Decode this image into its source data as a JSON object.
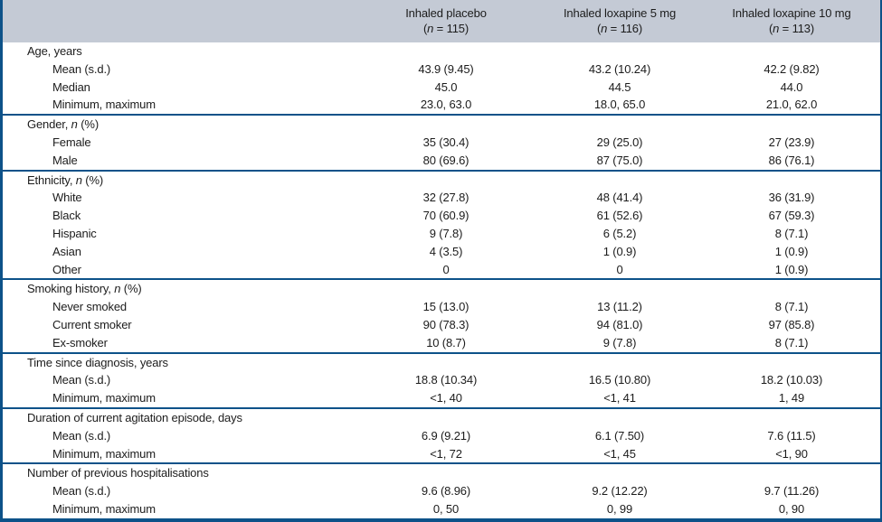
{
  "colors": {
    "header_bg": "#c4cad5",
    "border_blue": "#0d5289",
    "text": "#1c1c1c"
  },
  "header": {
    "columns": [
      {
        "line1": [
          {
            "t": "Inhaled placebo"
          }
        ],
        "line2": [
          {
            "t": "("
          },
          {
            "t": "n",
            "i": true
          },
          {
            "t": " = 115)"
          }
        ]
      },
      {
        "line1": [
          {
            "t": "Inhaled loxapine 5 mg"
          }
        ],
        "line2": [
          {
            "t": "("
          },
          {
            "t": "n",
            "i": true
          },
          {
            "t": " = 116)"
          }
        ]
      },
      {
        "line1": [
          {
            "t": "Inhaled loxapine 10 mg"
          }
        ],
        "line2": [
          {
            "t": "("
          },
          {
            "t": "n",
            "i": true
          },
          {
            "t": " = 113)"
          }
        ]
      }
    ]
  },
  "table": {
    "sections": [
      {
        "label_segments": [
          {
            "t": "Age, years"
          }
        ],
        "rows": [
          {
            "label_segments": [
              {
                "t": "Mean (s.d.)"
              }
            ],
            "values": [
              "43.9 (9.45)",
              "43.2 (10.24)",
              "42.2 (9.82)"
            ]
          },
          {
            "label_segments": [
              {
                "t": "Median"
              }
            ],
            "values": [
              "45.0",
              "44.5",
              "44.0"
            ]
          },
          {
            "label_segments": [
              {
                "t": "Minimum, maximum"
              }
            ],
            "values": [
              "23.0, 63.0",
              "18.0, 65.0",
              "21.0, 62.0"
            ]
          }
        ]
      },
      {
        "label_segments": [
          {
            "t": "Gender, "
          },
          {
            "t": "n",
            "i": true
          },
          {
            "t": " (%)"
          }
        ],
        "rows": [
          {
            "label_segments": [
              {
                "t": "Female"
              }
            ],
            "values": [
              "35 (30.4)",
              "29 (25.0)",
              "27 (23.9)"
            ]
          },
          {
            "label_segments": [
              {
                "t": "Male"
              }
            ],
            "values": [
              "80 (69.6)",
              "87 (75.0)",
              "86 (76.1)"
            ]
          }
        ]
      },
      {
        "label_segments": [
          {
            "t": "Ethnicity, "
          },
          {
            "t": "n",
            "i": true
          },
          {
            "t": " (%)"
          }
        ],
        "rows": [
          {
            "label_segments": [
              {
                "t": "White"
              }
            ],
            "values": [
              "32 (27.8)",
              "48 (41.4)",
              "36 (31.9)"
            ]
          },
          {
            "label_segments": [
              {
                "t": "Black"
              }
            ],
            "values": [
              "70 (60.9)",
              "61 (52.6)",
              "67 (59.3)"
            ]
          },
          {
            "label_segments": [
              {
                "t": "Hispanic"
              }
            ],
            "values": [
              "9 (7.8)",
              "6 (5.2)",
              "8 (7.1)"
            ]
          },
          {
            "label_segments": [
              {
                "t": "Asian"
              }
            ],
            "values": [
              "4 (3.5)",
              "1 (0.9)",
              "1 (0.9)"
            ]
          },
          {
            "label_segments": [
              {
                "t": "Other"
              }
            ],
            "values": [
              "0",
              "0",
              "1 (0.9)"
            ]
          }
        ]
      },
      {
        "label_segments": [
          {
            "t": "Smoking history, "
          },
          {
            "t": "n",
            "i": true
          },
          {
            "t": " (%)"
          }
        ],
        "rows": [
          {
            "label_segments": [
              {
                "t": "Never smoked"
              }
            ],
            "values": [
              "15 (13.0)",
              "13 (11.2)",
              "8 (7.1)"
            ]
          },
          {
            "label_segments": [
              {
                "t": "Current smoker"
              }
            ],
            "values": [
              "90 (78.3)",
              "94 (81.0)",
              "97 (85.8)"
            ]
          },
          {
            "label_segments": [
              {
                "t": "Ex-smoker"
              }
            ],
            "values": [
              "10 (8.7)",
              "9 (7.8)",
              "8 (7.1)"
            ]
          }
        ]
      },
      {
        "label_segments": [
          {
            "t": "Time since diagnosis, years"
          }
        ],
        "rows": [
          {
            "label_segments": [
              {
                "t": "Mean (s.d.)"
              }
            ],
            "values": [
              "18.8 (10.34)",
              "16.5 (10.80)",
              "18.2 (10.03)"
            ]
          },
          {
            "label_segments": [
              {
                "t": "Minimum, maximum"
              }
            ],
            "values": [
              "<1, 40",
              "<1, 41",
              "1, 49"
            ]
          }
        ]
      },
      {
        "label_segments": [
          {
            "t": "Duration of current agitation episode, days"
          }
        ],
        "rows": [
          {
            "label_segments": [
              {
                "t": "Mean (s.d.)"
              }
            ],
            "values": [
              "6.9 (9.21)",
              "6.1 (7.50)",
              "7.6 (11.5)"
            ]
          },
          {
            "label_segments": [
              {
                "t": "Minimum, maximum"
              }
            ],
            "values": [
              "<1, 72",
              "<1, 45",
              "<1, 90"
            ]
          }
        ]
      },
      {
        "label_segments": [
          {
            "t": "Number of previous hospitalisations"
          }
        ],
        "rows": [
          {
            "label_segments": [
              {
                "t": "Mean (s.d.)"
              }
            ],
            "values": [
              "9.6 (8.96)",
              "9.2 (12.22)",
              "9.7 (11.26)"
            ]
          },
          {
            "label_segments": [
              {
                "t": "Minimum, maximum"
              }
            ],
            "values": [
              "0, 50",
              "0, 99",
              "0, 90"
            ]
          }
        ]
      }
    ]
  }
}
